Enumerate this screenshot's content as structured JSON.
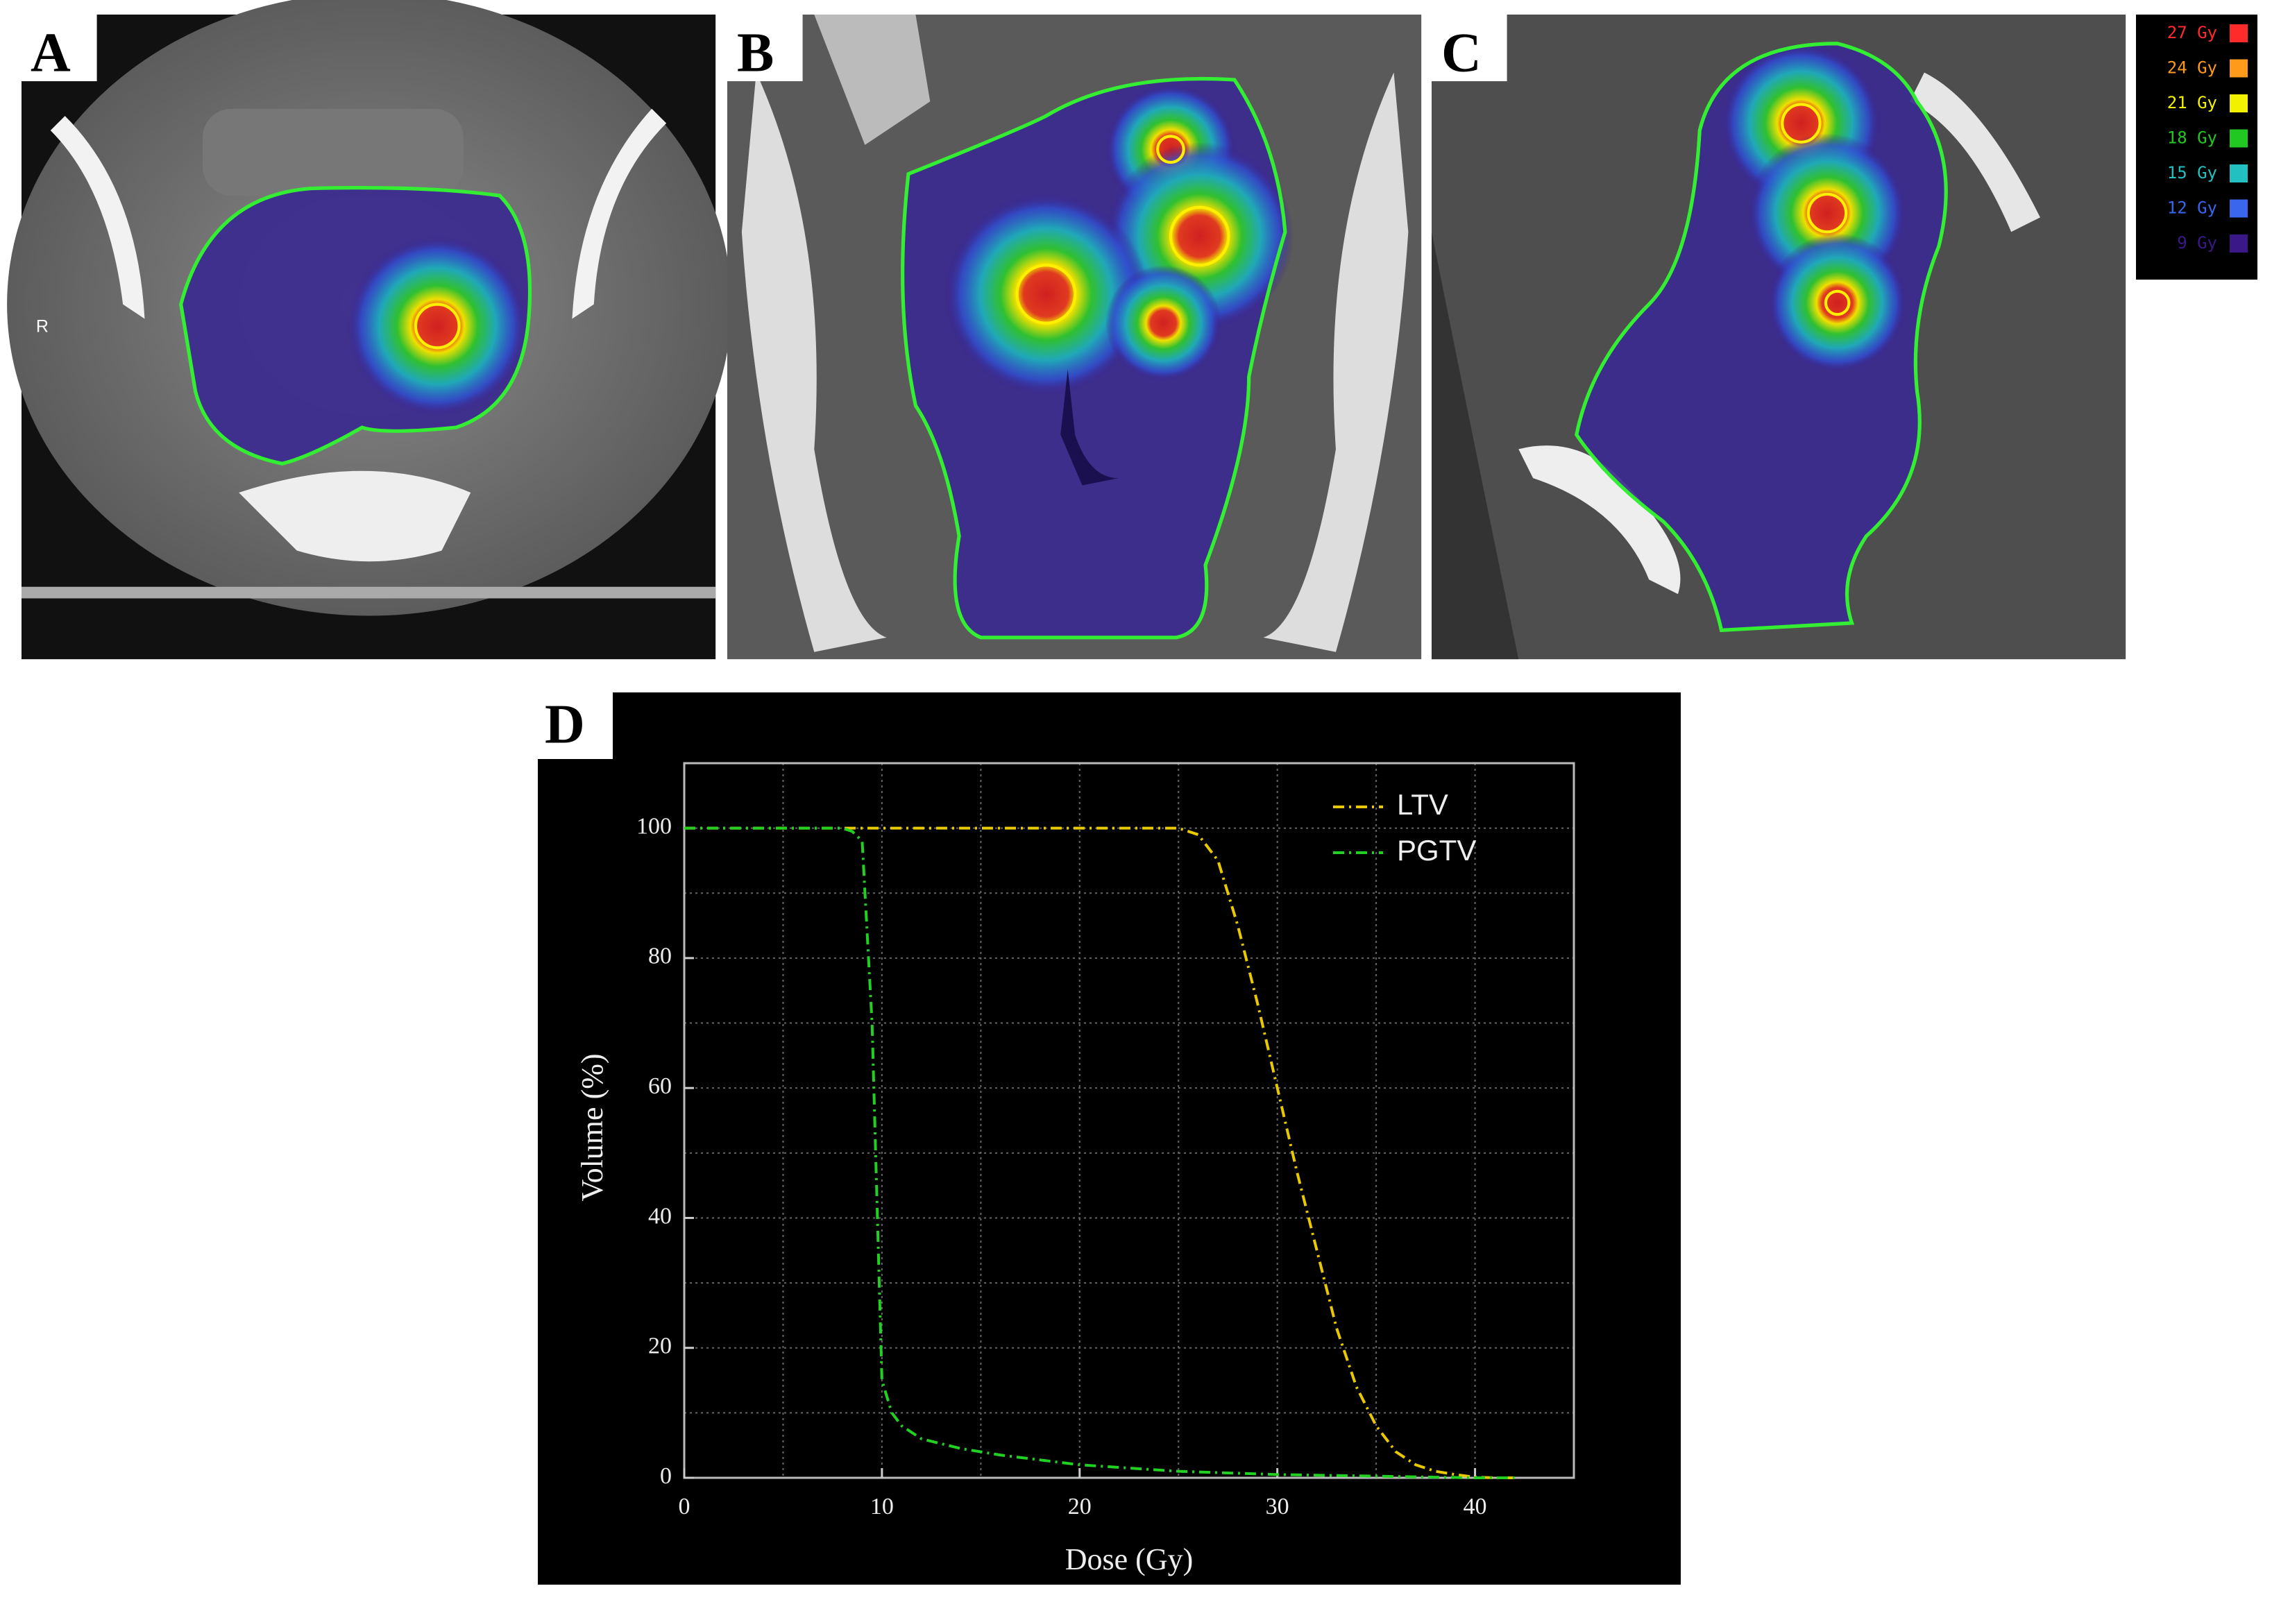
{
  "panels": {
    "labels": [
      "A",
      "B",
      "C",
      "D"
    ],
    "orientation_marker": "R"
  },
  "dose_legend": [
    {
      "label": "27 Gy",
      "color": "#ff2a2a"
    },
    {
      "label": "24 Gy",
      "color": "#ff9a1a"
    },
    {
      "label": "21 Gy",
      "color": "#f2f200"
    },
    {
      "label": "18 Gy",
      "color": "#22c822"
    },
    {
      "label": "15 Gy",
      "color": "#22c0c0"
    },
    {
      "label": "12 Gy",
      "color": "#3a66ee"
    },
    {
      "label": "9 Gy",
      "color": "#3a1888"
    }
  ],
  "chart_data": {
    "type": "line",
    "xlabel": "Dose (Gy)",
    "ylabel": "Volume (%)",
    "x": [
      0,
      5,
      8,
      8.5,
      9,
      9.5,
      10,
      10.5,
      11,
      12,
      14,
      16,
      20,
      25,
      26,
      27,
      28,
      29,
      30,
      31,
      32,
      33,
      34,
      35,
      36,
      37,
      38,
      39,
      40,
      41,
      42
    ],
    "series": [
      {
        "name": "LTV",
        "color": "#e8c800",
        "values": [
          100,
          100,
          100,
          100,
          100,
          100,
          100,
          100,
          100,
          100,
          100,
          100,
          100,
          100,
          99,
          95,
          85,
          73,
          60,
          47,
          35,
          23,
          14,
          8,
          4,
          2,
          1,
          0.5,
          0.1,
          0,
          0
        ]
      },
      {
        "name": "PGTV",
        "color": "#22d022",
        "values": [
          100,
          100,
          100,
          99.5,
          98,
          70,
          15,
          10,
          8,
          6,
          4.5,
          3.5,
          2,
          1,
          0.9,
          0.8,
          0.7,
          0.6,
          0.5,
          0.45,
          0.4,
          0.35,
          0.3,
          0.25,
          0.2,
          0.15,
          0.1,
          0.05,
          0,
          0,
          0
        ]
      }
    ],
    "xlim": [
      0,
      45
    ],
    "ylim": [
      0,
      110
    ],
    "xticks": [
      0,
      10,
      20,
      30,
      40
    ],
    "yticks": [
      0,
      20,
      40,
      60,
      80,
      100
    ],
    "minor_xticks": [
      5,
      15,
      25,
      35
    ],
    "minor_yticks": [
      10,
      30,
      50,
      70,
      90
    ],
    "grid": true,
    "legend": "upper right"
  }
}
